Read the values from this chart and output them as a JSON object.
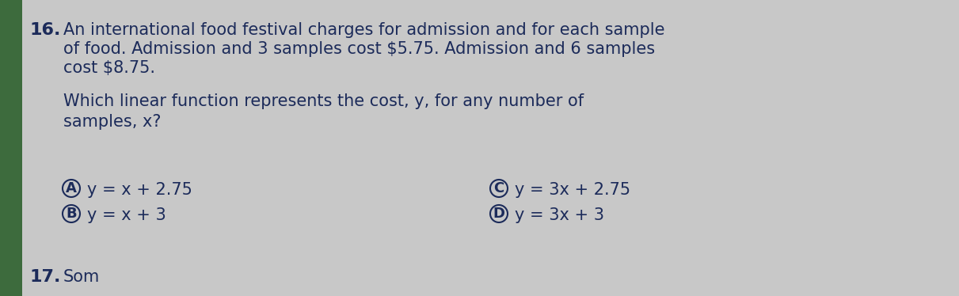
{
  "background_color": "#c8c8c8",
  "left_bar_color": "#3d6b3d",
  "question_number": "16.",
  "para1": "An international food festival charges for admission and for each sample",
  "para2": "of food. Admission and 3 samples cost $5.75. Admission and 6 samples",
  "para3": "cost $8.75.",
  "q_line1": "Which linear function represents the cost, y, for any number of",
  "q_line2": "samples, x?",
  "optA_label": "A",
  "optA_text": "y = x + 2.75",
  "optB_label": "B",
  "optB_text": "y = x + 3",
  "optC_label": "C",
  "optC_text": "y = 3x + 2.75",
  "optD_label": "D",
  "optD_text": "y = 3x + 3",
  "next_number": "17.",
  "next_text": "Som",
  "text_color": "#1c2b5a",
  "font_size_title": 16,
  "font_size_body": 15,
  "font_size_options": 15
}
